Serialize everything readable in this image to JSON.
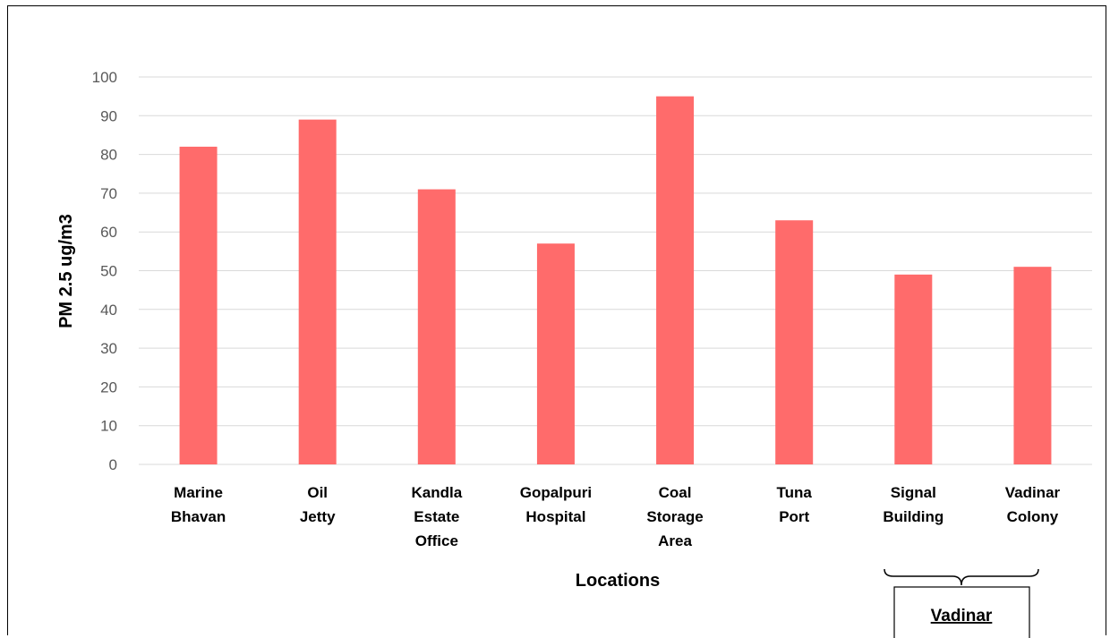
{
  "chart_data": {
    "type": "bar",
    "categories": [
      [
        "Marine",
        "Bhavan"
      ],
      [
        "Oil",
        "Jetty"
      ],
      [
        "Kandla",
        "Estate",
        "Office"
      ],
      [
        "Gopalpuri",
        "Hospital"
      ],
      [
        "Coal",
        "Storage",
        "Area"
      ],
      [
        "Tuna",
        "Port"
      ],
      [
        "Signal",
        "Building"
      ],
      [
        "Vadinar",
        "Colony"
      ]
    ],
    "values": [
      82,
      89,
      71,
      57,
      95,
      63,
      49,
      51
    ],
    "xlabel": "Locations",
    "ylabel": "PM 2.5 ug/m3",
    "ylim": [
      0,
      100
    ],
    "yticks": [
      0,
      10,
      20,
      30,
      40,
      50,
      60,
      70,
      80,
      90,
      100
    ],
    "grid": true,
    "bar_color": "#FF6B6B",
    "group_annotation": {
      "label": "Vadinar",
      "categories": [
        "Signal Building",
        "Vadinar Colony"
      ]
    }
  }
}
